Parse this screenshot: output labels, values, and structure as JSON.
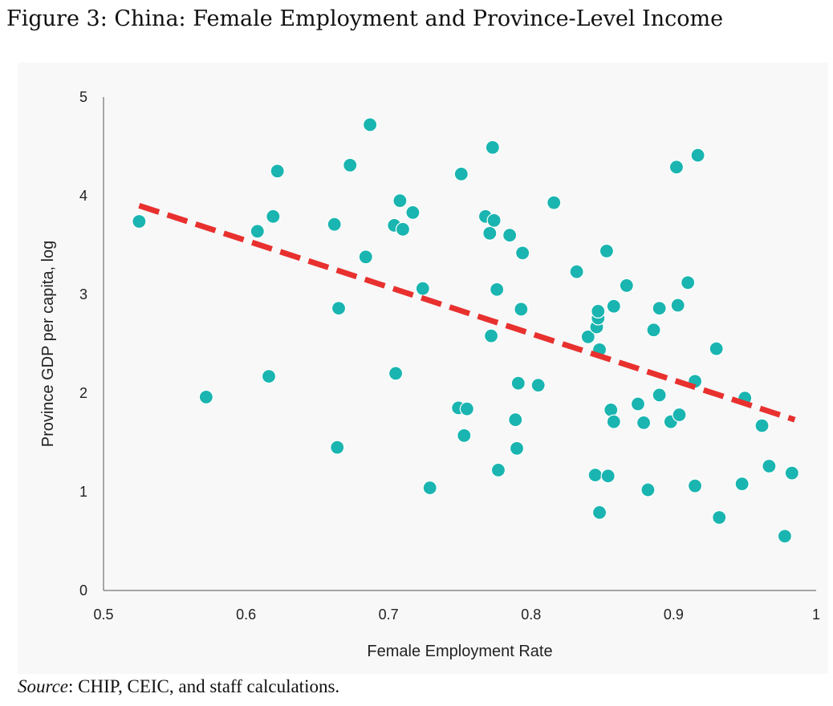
{
  "figure": {
    "title": "Figure 3: China: Female Employment and Province-Level Income",
    "source_label": "Source",
    "source_text": ": CHIP, CEIC, and staff calculations."
  },
  "chart_data": {
    "type": "scatter",
    "title": "",
    "xlabel": "Female Employment Rate",
    "ylabel": "Province GDP per capita, log",
    "xlim": [
      0.5,
      1.0
    ],
    "ylim": [
      0,
      5
    ],
    "x_ticks": [
      "0.5",
      "0.6",
      "0.7",
      "0.8",
      "0.9",
      "1"
    ],
    "y_ticks": [
      "0",
      "1",
      "2",
      "3",
      "4",
      "5"
    ],
    "grid": false,
    "legend": "none",
    "marker_color": "#1ab5b0",
    "trendline_color": "#e8312f",
    "trendline": {
      "style": "dashed",
      "x": [
        0.525,
        0.985
      ],
      "y": [
        3.9,
        1.73
      ]
    },
    "points": [
      [
        0.525,
        3.74
      ],
      [
        0.572,
        1.96
      ],
      [
        0.608,
        3.64
      ],
      [
        0.616,
        2.17
      ],
      [
        0.619,
        3.79
      ],
      [
        0.622,
        4.25
      ],
      [
        0.662,
        3.71
      ],
      [
        0.664,
        1.45
      ],
      [
        0.665,
        2.86
      ],
      [
        0.673,
        4.31
      ],
      [
        0.684,
        3.38
      ],
      [
        0.687,
        4.72
      ],
      [
        0.704,
        3.7
      ],
      [
        0.705,
        2.2
      ],
      [
        0.708,
        3.95
      ],
      [
        0.71,
        3.66
      ],
      [
        0.717,
        3.83
      ],
      [
        0.724,
        3.06
      ],
      [
        0.729,
        1.04
      ],
      [
        0.749,
        1.85
      ],
      [
        0.751,
        4.22
      ],
      [
        0.753,
        1.57
      ],
      [
        0.755,
        1.84
      ],
      [
        0.768,
        3.79
      ],
      [
        0.771,
        3.62
      ],
      [
        0.772,
        2.58
      ],
      [
        0.773,
        4.49
      ],
      [
        0.774,
        3.75
      ],
      [
        0.776,
        3.05
      ],
      [
        0.777,
        1.22
      ],
      [
        0.785,
        3.6
      ],
      [
        0.789,
        1.73
      ],
      [
        0.79,
        1.44
      ],
      [
        0.791,
        2.1
      ],
      [
        0.793,
        2.85
      ],
      [
        0.794,
        3.42
      ],
      [
        0.805,
        2.08
      ],
      [
        0.816,
        3.93
      ],
      [
        0.832,
        3.23
      ],
      [
        0.84,
        2.57
      ],
      [
        0.845,
        1.17
      ],
      [
        0.846,
        2.67
      ],
      [
        0.847,
        2.76
      ],
      [
        0.847,
        2.83
      ],
      [
        0.848,
        0.79
      ],
      [
        0.848,
        2.44
      ],
      [
        0.853,
        3.44
      ],
      [
        0.854,
        1.16
      ],
      [
        0.856,
        1.83
      ],
      [
        0.858,
        2.88
      ],
      [
        0.858,
        1.71
      ],
      [
        0.867,
        3.09
      ],
      [
        0.875,
        1.89
      ],
      [
        0.879,
        1.7
      ],
      [
        0.882,
        1.02
      ],
      [
        0.886,
        2.64
      ],
      [
        0.89,
        1.98
      ],
      [
        0.89,
        2.86
      ],
      [
        0.898,
        1.71
      ],
      [
        0.902,
        4.29
      ],
      [
        0.903,
        2.89
      ],
      [
        0.904,
        1.78
      ],
      [
        0.91,
        3.12
      ],
      [
        0.915,
        2.12
      ],
      [
        0.915,
        1.06
      ],
      [
        0.917,
        4.41
      ],
      [
        0.93,
        2.45
      ],
      [
        0.932,
        0.74
      ],
      [
        0.948,
        1.08
      ],
      [
        0.95,
        1.95
      ],
      [
        0.962,
        1.67
      ],
      [
        0.967,
        1.26
      ],
      [
        0.978,
        0.55
      ],
      [
        0.983,
        1.19
      ]
    ]
  }
}
